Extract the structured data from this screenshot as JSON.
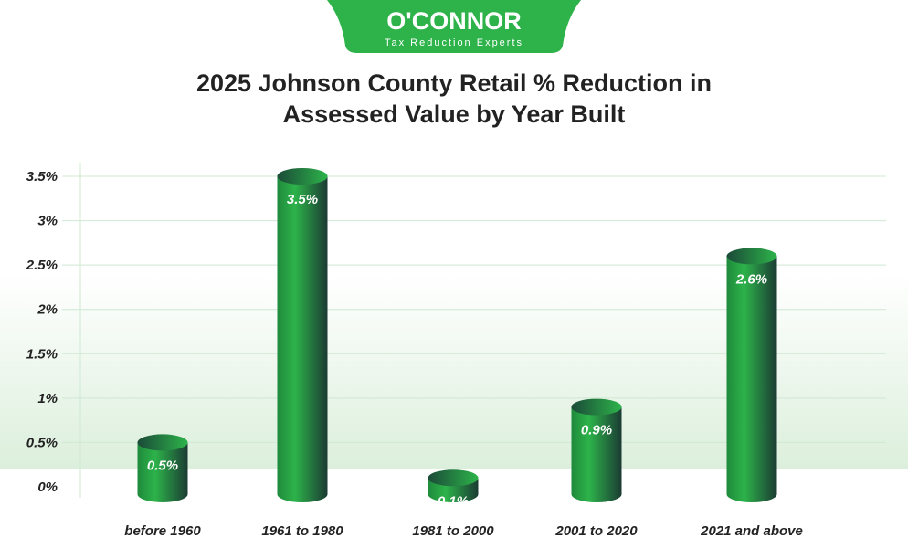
{
  "logo": {
    "name": "O'CONNOR",
    "tagline": "Tax Reduction Experts",
    "color": "#2db34a"
  },
  "chart_data": {
    "type": "bar",
    "title": "2025 Johnson County Retail % Reduction in Assessed Value by Year Built",
    "title_lines": [
      "2025 Johnson County Retail % Reduction in",
      "Assessed Value by Year Built"
    ],
    "categories": [
      "before 1960",
      "1961 to 1980",
      "1981 to 2000",
      "2001 to 2020",
      "2021 and above"
    ],
    "values": [
      0.5,
      3.5,
      0.1,
      0.9,
      2.6
    ],
    "data_labels": [
      "0.5%",
      "3.5%",
      "0.1%",
      "0.9%",
      "2.6%"
    ],
    "yticks": [
      "0%",
      "0.5%",
      "1%",
      "1.5%",
      "2%",
      "2.5%",
      "3%",
      "3.5%"
    ],
    "ylim": [
      0,
      3.5
    ],
    "xlabel": "",
    "ylabel": "",
    "grid": true,
    "bar_style": "3d cylinder",
    "colors": {
      "bar_light": "#2db34a",
      "bar_dark": "#1b3b33",
      "grid": "#cfe8d2"
    }
  }
}
